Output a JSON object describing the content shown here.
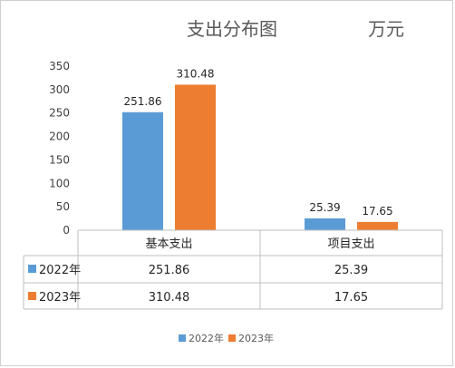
{
  "chart_data": {
    "type": "bar",
    "title": "支出分布图",
    "unit": "万元",
    "categories": [
      "基本支出",
      "项目支出"
    ],
    "series": [
      {
        "name": "2022年",
        "values": [
          251.86,
          25.39
        ],
        "color": "#5b9bd5"
      },
      {
        "name": "2023年",
        "values": [
          310.48,
          17.65
        ],
        "color": "#ed7d31"
      }
    ],
    "value_labels": [
      [
        "251.86",
        "25.39"
      ],
      [
        "310.48",
        "17.65"
      ]
    ],
    "y_ticks": [
      "0",
      "50",
      "100",
      "150",
      "200",
      "250",
      "300",
      "350"
    ],
    "ylim": [
      0,
      350
    ],
    "grid": false,
    "legend": "bottom",
    "data_table": true
  }
}
